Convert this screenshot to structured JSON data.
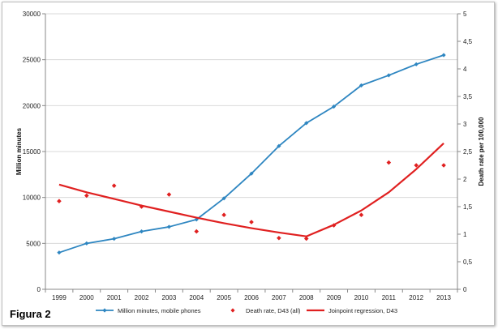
{
  "figure_label": "Figura 2",
  "chart_data": {
    "type": "line",
    "x": [
      1999,
      2000,
      2001,
      2002,
      2003,
      2004,
      2005,
      2006,
      2007,
      2008,
      2009,
      2010,
      2011,
      2012,
      2013
    ],
    "ylabel_left": "Million minutes",
    "ylabel_right": "Death rate per 100,000",
    "ylim_left": [
      0,
      30000
    ],
    "ylim_right": [
      0,
      5
    ],
    "yticks_left": [
      "0",
      "5000",
      "10000",
      "15000",
      "20000",
      "25000",
      "30000"
    ],
    "yticks_right": [
      "0",
      "0,5",
      "1",
      "1,5",
      "2",
      "2,5",
      "3",
      "3,5",
      "4",
      "4,5",
      "5"
    ],
    "grid": true,
    "legend_position": "bottom",
    "series": [
      {
        "name": "Million minutes, mobile phones",
        "axis": "left",
        "style": "line-markers",
        "color": "#2e86c1",
        "values": [
          4000,
          5000,
          5500,
          6300,
          6800,
          7600,
          9900,
          12600,
          15600,
          18100,
          19900,
          22200,
          23300,
          24500,
          25500
        ]
      },
      {
        "name": "Death rate, D43 (all)",
        "axis": "right",
        "style": "markers",
        "color": "#e02020",
        "values": [
          1.6,
          1.7,
          1.88,
          1.5,
          1.72,
          1.05,
          1.35,
          1.22,
          0.93,
          0.92,
          1.16,
          1.35,
          2.3,
          2.25,
          2.25
        ]
      },
      {
        "name": "Joinpoint regression, D43",
        "axis": "right",
        "style": "line",
        "color": "#e02020",
        "values": [
          1.9,
          1.76,
          1.64,
          1.52,
          1.41,
          1.3,
          1.2,
          1.11,
          1.03,
          0.96,
          1.17,
          1.43,
          1.76,
          2.18,
          2.65
        ]
      }
    ]
  }
}
